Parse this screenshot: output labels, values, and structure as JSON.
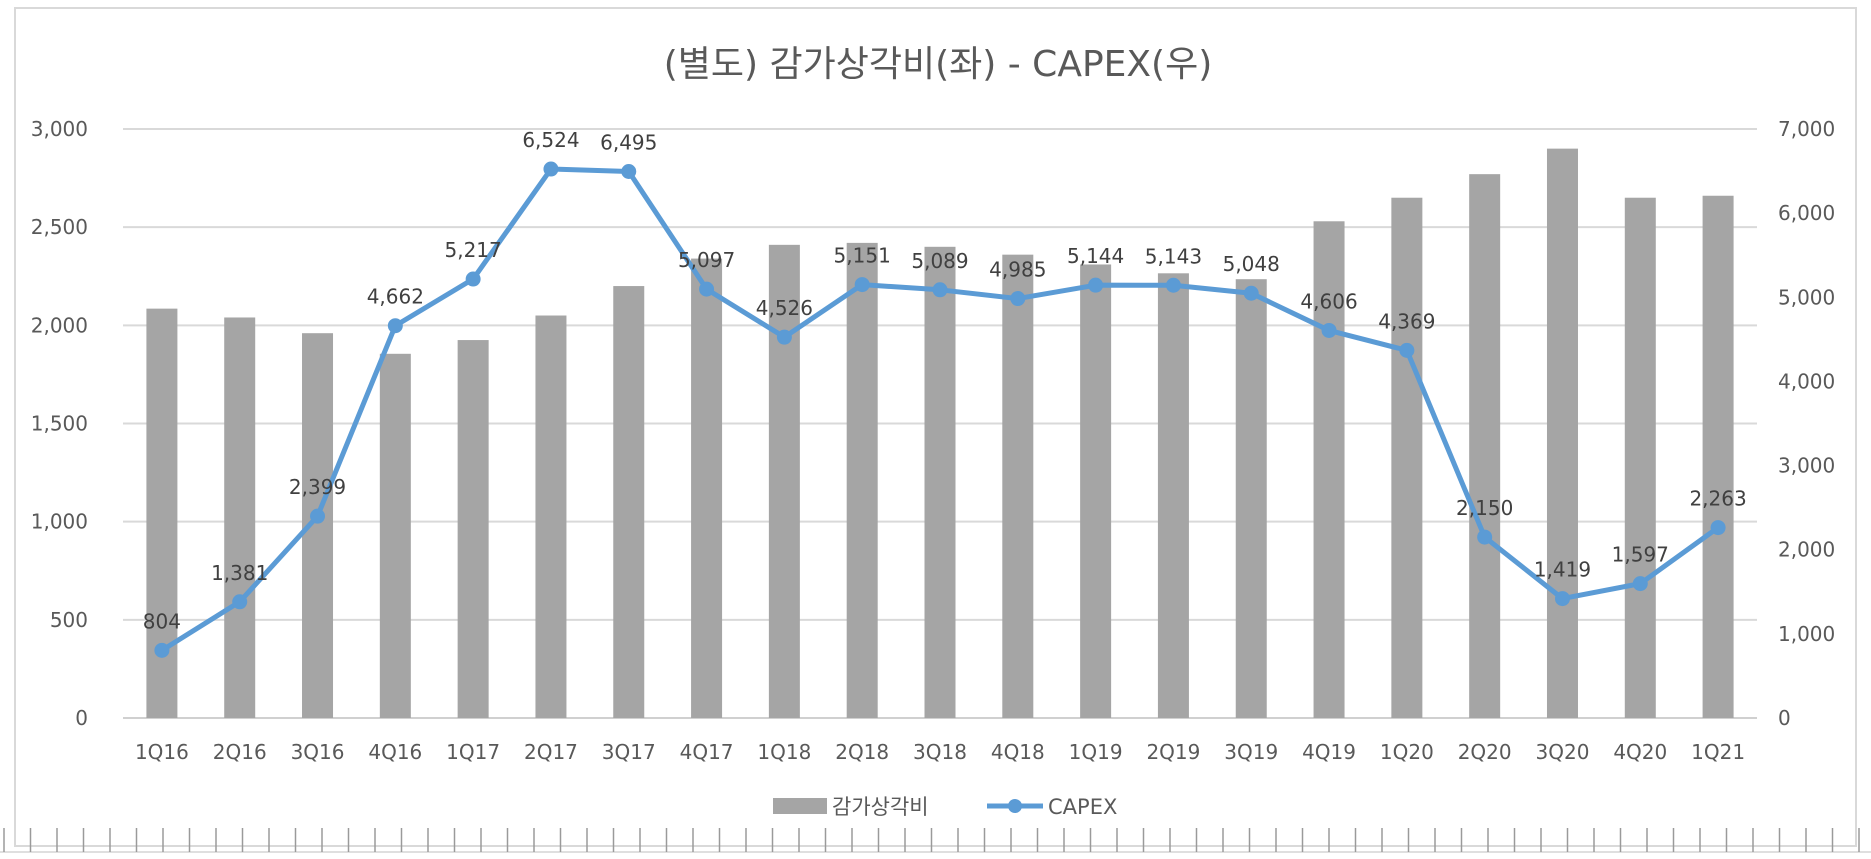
{
  "chart_data": {
    "type": "bar",
    "title": "(별도) 감가상각비(좌) - CAPEX(우)",
    "categories": [
      "1Q16",
      "2Q16",
      "3Q16",
      "4Q16",
      "1Q17",
      "2Q17",
      "3Q17",
      "4Q17",
      "1Q18",
      "2Q18",
      "3Q18",
      "4Q18",
      "1Q19",
      "2Q19",
      "3Q19",
      "4Q19",
      "1Q20",
      "2Q20",
      "3Q20",
      "4Q20",
      "1Q21"
    ],
    "y_left": {
      "ticks": [
        "0",
        "500",
        "1,000",
        "1,500",
        "2,000",
        "2,500",
        "3,000"
      ],
      "ylim": [
        0,
        3000
      ]
    },
    "y_right": {
      "ticks": [
        "0",
        "1,000",
        "2,000",
        "3,000",
        "4,000",
        "5,000",
        "6,000",
        "7,000"
      ],
      "ylim": [
        0,
        7000
      ]
    },
    "grid": true,
    "legend_position": "bottom",
    "series": [
      {
        "name": "감가상각비",
        "type": "bar",
        "axis": "left",
        "color": "#a5a5a5",
        "values": [
          2085,
          2040,
          1960,
          1855,
          1925,
          2050,
          2200,
          2340,
          2410,
          2420,
          2400,
          2360,
          2310,
          2265,
          2235,
          2530,
          2650,
          2770,
          2900,
          2650,
          2660
        ]
      },
      {
        "name": "CAPEX",
        "type": "line",
        "axis": "right",
        "color": "#5b9bd5",
        "values": [
          804,
          1381,
          2399,
          4662,
          5217,
          6524,
          6495,
          5097,
          4526,
          5151,
          5089,
          4985,
          5144,
          5143,
          5048,
          4606,
          4369,
          2150,
          1419,
          1597,
          2263
        ],
        "labels": [
          "804",
          "1,381",
          "2,399",
          "4,662",
          "5,217",
          "6,524",
          "6,495",
          "5,097",
          "4,526",
          "5,151",
          "5,089",
          "4,985",
          "5,144",
          "5,143",
          "5,048",
          "4,606",
          "4,369",
          "2,150",
          "1,419",
          "1,597",
          "2,263"
        ]
      }
    ]
  }
}
